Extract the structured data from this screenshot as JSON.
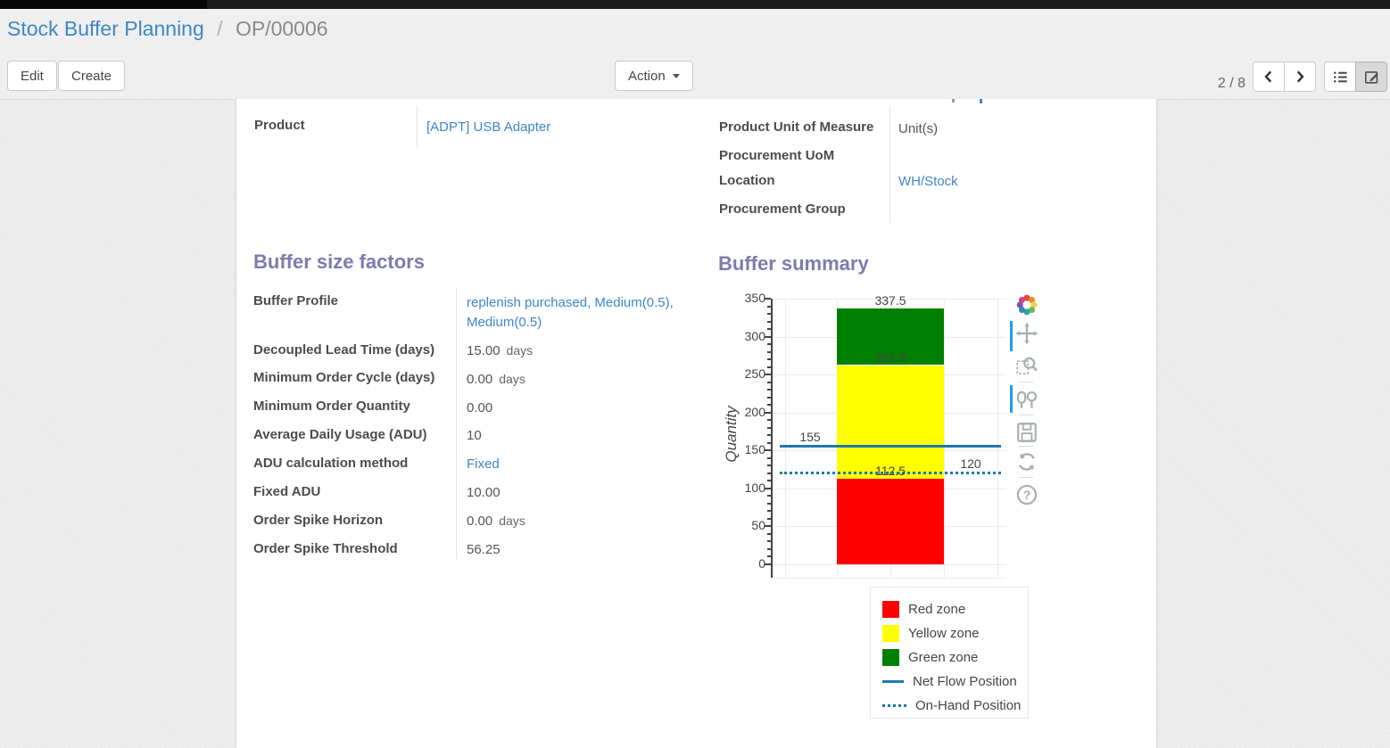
{
  "breadcrumb": {
    "parent": "Stock Buffer Planning",
    "separator": "/",
    "current": "OP/00006"
  },
  "toolbar": {
    "edit_label": "Edit",
    "create_label": "Create",
    "action_label": "Action",
    "pager": "2 / 8"
  },
  "form": {
    "product": {
      "label": "Product",
      "value": "[ADPT] USB Adapter"
    },
    "right_fields": [
      {
        "label": "Product Unit of Measure",
        "value": "Unit(s)"
      },
      {
        "label": "Procurement UoM",
        "value": ""
      },
      {
        "label": "Location",
        "value": "WH/Stock"
      },
      {
        "label": "Procurement Group",
        "value": ""
      }
    ],
    "factors": {
      "title": "Buffer size factors",
      "rows": [
        {
          "label": "Buffer Profile",
          "value": "replenish purchased, Medium(0.5), Medium(0.5)",
          "unit": ""
        },
        {
          "label": "Decoupled Lead Time (days)",
          "value": "15.00",
          "unit": "days"
        },
        {
          "label": "Minimum Order Cycle (days)",
          "value": "0.00",
          "unit": "days"
        },
        {
          "label": "Minimum Order Quantity",
          "value": "0.00",
          "unit": ""
        },
        {
          "label": "Average Daily Usage (ADU)",
          "value": "10",
          "unit": ""
        },
        {
          "label": "ADU calculation method",
          "value": "Fixed",
          "unit": ""
        },
        {
          "label": "Fixed ADU",
          "value": "10.00",
          "unit": ""
        },
        {
          "label": "Order Spike Horizon",
          "value": "0.00",
          "unit": "days"
        },
        {
          "label": "Order Spike Threshold",
          "value": "56.25",
          "unit": ""
        }
      ]
    },
    "summary_title": "Buffer summary"
  },
  "chart_data": {
    "type": "bar",
    "title": "Buffer summary",
    "xlabel": "",
    "ylabel": "Quantity",
    "ylim": [
      0,
      350
    ],
    "yticks": [
      0,
      50,
      100,
      150,
      200,
      250,
      300,
      350
    ],
    "minor_tick_step": 10,
    "grid": true,
    "series": [
      {
        "name": "Red zone",
        "type": "bar",
        "from": 0,
        "to": 112.5,
        "color": "#ff0000",
        "top_label": "112.5"
      },
      {
        "name": "Yellow zone",
        "type": "bar",
        "from": 112.5,
        "to": 262.5,
        "color": "#ffff00",
        "top_label": "262.5"
      },
      {
        "name": "Green zone",
        "type": "bar",
        "from": 262.5,
        "to": 337.5,
        "color": "#008000",
        "top_label": "337.5"
      },
      {
        "name": "Net Flow Position",
        "type": "line",
        "value": 155,
        "style": "solid",
        "color": "#1f77b4",
        "label": "155",
        "label_side": "left"
      },
      {
        "name": "On-Hand Position",
        "type": "line",
        "value": 120,
        "style": "dotted",
        "color": "#1f77b4",
        "label": "120",
        "label_side": "right"
      }
    ],
    "legend": {
      "position": "below-right",
      "items": [
        {
          "label": "Red zone",
          "swatch": "square",
          "color": "#ff0000"
        },
        {
          "label": "Yellow zone",
          "swatch": "square",
          "color": "#ffff00"
        },
        {
          "label": "Green zone",
          "swatch": "square",
          "color": "#008000"
        },
        {
          "label": "Net Flow Position",
          "swatch": "line",
          "color": "#1f77b4"
        },
        {
          "label": "On-Hand Position",
          "swatch": "dotted-line",
          "color": "#1f77b4"
        }
      ]
    },
    "modebar_icons": [
      "plotly-logo",
      "pan",
      "zoom-box",
      "compare-hover",
      "save-image",
      "reset-axes",
      "help"
    ]
  },
  "colors": {
    "accent_purple": "#7c7bad",
    "link_blue": "#3c87c9",
    "chart_line_blue": "#1f77b4",
    "red_zone": "#ff0000",
    "yellow_zone": "#ffff00",
    "green_zone": "#008000",
    "modebar_active_blue": "#1f9bf0"
  }
}
